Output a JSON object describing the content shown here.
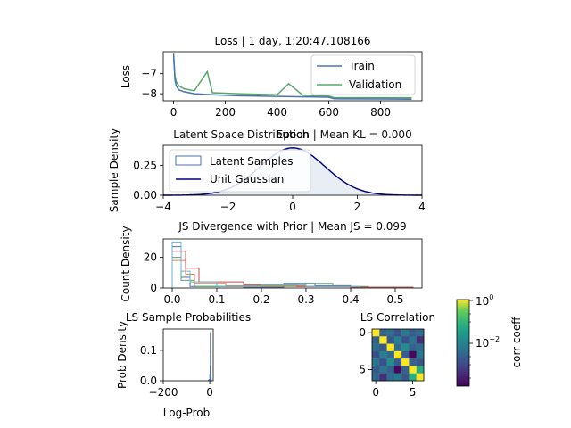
{
  "chart_data": [
    {
      "type": "line",
      "title": "Loss | 1 day, 1:20:47.108166",
      "xlabel": "Epoch",
      "ylabel": "Loss",
      "xlim": [
        -40,
        960
      ],
      "ylim": [
        -8.35,
        -5.9
      ],
      "xticks": [
        "0",
        "200",
        "400",
        "600",
        "800"
      ],
      "yticks": [
        "−7",
        "−8"
      ],
      "legend": "top-right",
      "series": [
        {
          "name": "Train",
          "color": "#4c72b0",
          "x": [
            0,
            5,
            10,
            20,
            40,
            80,
            150,
            250,
            400,
            600,
            620,
            800,
            920
          ],
          "y": [
            -6.0,
            -7.3,
            -7.6,
            -7.8,
            -7.9,
            -8.0,
            -8.05,
            -8.1,
            -8.13,
            -8.17,
            -8.25,
            -8.26,
            -8.27
          ]
        },
        {
          "name": "Validation",
          "color": "#55a868",
          "x": [
            0,
            5,
            10,
            20,
            40,
            80,
            130,
            150,
            250,
            400,
            445,
            500,
            600,
            620,
            800,
            920
          ],
          "y": [
            -6.2,
            -7.1,
            -7.4,
            -7.6,
            -7.75,
            -7.85,
            -6.9,
            -7.95,
            -8.0,
            -8.05,
            -7.5,
            -8.08,
            -8.12,
            -8.2,
            -8.2,
            -8.2
          ]
        }
      ]
    },
    {
      "type": "area",
      "title": "Latent Space Distribution | Mean KL = 0.000",
      "xlabel": "",
      "ylabel": "Sample Density",
      "xlim": [
        -4,
        4
      ],
      "ylim": [
        0,
        0.42
      ],
      "xticks": [
        "−4",
        "−2",
        "0",
        "2",
        "4"
      ],
      "yticks": [
        "0.00",
        "0.25"
      ],
      "legend": "top-left",
      "series": [
        {
          "name": "Latent Samples",
          "color": "#4c72b0"
        },
        {
          "name": "Unit Gaussian",
          "color": "#000080"
        }
      ]
    },
    {
      "type": "bar",
      "title": "JS Divergence with Prior | Mean JS = 0.099",
      "xlabel": "",
      "ylabel": "Count Density",
      "xlim": [
        -0.02,
        0.56
      ],
      "ylim": [
        0,
        32
      ],
      "xticks": [
        "0.0",
        "0.1",
        "0.2",
        "0.3",
        "0.4",
        "0.5"
      ],
      "yticks": [
        "0",
        "20"
      ],
      "series": [
        {
          "color": "#4c72b0",
          "edges": [
            0,
            0.02,
            0.04,
            0.16,
            0.25,
            0.32,
            0.4
          ],
          "values": [
            27,
            7,
            1,
            0.5,
            3,
            1.5
          ]
        },
        {
          "color": "#55a868",
          "edges": [
            0,
            0.02,
            0.05,
            0.2,
            0.3,
            0.36,
            0.44
          ],
          "values": [
            20,
            5,
            1,
            1,
            3,
            1
          ]
        },
        {
          "color": "#dd8452",
          "edges": [
            0,
            0.03,
            0.05,
            0.12,
            0.3,
            0.4,
            0.54
          ],
          "values": [
            18,
            9,
            3,
            1.5,
            1,
            0.5
          ]
        },
        {
          "color": "#c44e52",
          "edges": [
            0,
            0.03,
            0.06,
            0.16,
            0.28,
            0.4,
            0.54
          ],
          "values": [
            24,
            13,
            4,
            2,
            1,
            0.5
          ]
        },
        {
          "color": "#64b5cd",
          "edges": [
            0,
            0.02,
            0.04,
            0.1,
            0.2,
            0.3,
            0.42
          ],
          "values": [
            30,
            11,
            4,
            1,
            2,
            1
          ]
        }
      ]
    },
    {
      "type": "bar",
      "title": "LS Sample Probabilities",
      "xlabel": "Log-Prob",
      "ylabel": "Prob Density",
      "xlim": [
        -200,
        15
      ],
      "ylim": [
        0,
        0.17
      ],
      "xticks": [
        "−200",
        "0"
      ],
      "yticks": [
        "0.0",
        "0.1"
      ],
      "series": [
        {
          "color": "#4c72b0",
          "x": [
            -6,
            -3,
            0,
            1,
            2,
            3,
            4,
            5,
            6,
            7,
            8
          ],
          "values": [
            0.003,
            0.006,
            0.02,
            0.05,
            0.16,
            0.1,
            0.04,
            0.02,
            0.01,
            0.004,
            0.002
          ]
        }
      ]
    },
    {
      "type": "heatmap",
      "title": "LS Correlation",
      "xticks": [
        "0",
        "5"
      ],
      "yticks": [
        "0",
        "5"
      ],
      "colorbar": {
        "label": "corr coeff",
        "ticks": [
          "10",
          "10"
        ],
        "exponents": [
          "0",
          "−2"
        ],
        "scale": "log",
        "range_log10": [
          -4,
          0
        ]
      },
      "matrix": [
        [
          0,
          -2.6,
          -2.4,
          -2.9,
          -2.2,
          -2.7,
          -2.5
        ],
        [
          -2.6,
          0,
          -2.8,
          -2.1,
          -2.9,
          -2.3,
          -3.4
        ],
        [
          -2.4,
          -2.8,
          0,
          -2.5,
          -1.8,
          -2.6,
          -2.4
        ],
        [
          -2.9,
          -2.1,
          -2.5,
          0,
          -2.7,
          -3.9,
          -2.2
        ],
        [
          -2.2,
          -2.9,
          -1.8,
          -2.7,
          0,
          -2.6,
          -2.8
        ],
        [
          -2.7,
          -2.3,
          -2.6,
          -3.9,
          -2.6,
          0,
          -1.2
        ],
        [
          -2.5,
          -3.4,
          -2.4,
          -2.2,
          -2.8,
          -1.2,
          0
        ]
      ]
    }
  ]
}
